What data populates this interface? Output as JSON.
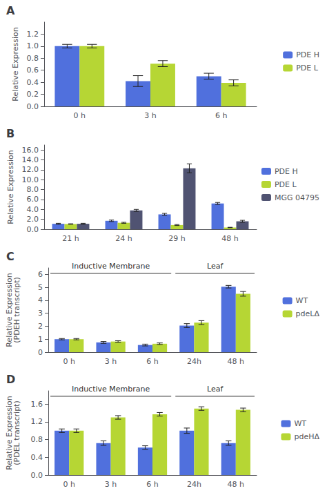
{
  "chart_data": [
    {
      "type": "bar",
      "title": "A",
      "ylabel": "Relative Expression",
      "categories": [
        "0 h",
        "3 h",
        "6 h"
      ],
      "series": [
        {
          "name": "PDE H",
          "values": [
            1.0,
            0.42,
            0.5
          ],
          "errors": [
            0.03,
            0.09,
            0.05
          ]
        },
        {
          "name": "PDE L",
          "values": [
            1.0,
            0.71,
            0.39
          ],
          "errors": [
            0.03,
            0.05,
            0.05
          ]
        }
      ],
      "ylim": [
        0,
        1.4
      ],
      "yticks": [
        {
          "value": 0,
          "label": "0.0"
        },
        0.2,
        0.4,
        0.6,
        0.8,
        {
          "value": 1,
          "label": "1.0"
        },
        1.2
      ],
      "grid": false,
      "legend": "right"
    },
    {
      "type": "bar",
      "title": "B",
      "ylabel": "Relative Expression",
      "categories": [
        "21 h",
        "24 h",
        "29 h",
        "48 h"
      ],
      "series": [
        {
          "name": "PDE H",
          "values": [
            1.1,
            1.7,
            3.0,
            5.2
          ],
          "errors": [
            0.1,
            0.15,
            0.2,
            0.2
          ]
        },
        {
          "name": "PDE L",
          "values": [
            1.05,
            1.3,
            0.85,
            0.35
          ],
          "errors": [
            0.05,
            0.1,
            0.1,
            0.04
          ]
        },
        {
          "name": "MGG 04795",
          "values": [
            1.1,
            3.8,
            12.3,
            1.6
          ],
          "errors": [
            0.1,
            0.2,
            0.9,
            0.2
          ]
        }
      ],
      "ylim": [
        0,
        17
      ],
      "yticks": [
        {
          "value": 0,
          "label": "0.0"
        },
        {
          "value": 2,
          "label": "2.0"
        },
        {
          "value": 4,
          "label": "4.0"
        },
        {
          "value": 6,
          "label": "6.0"
        },
        {
          "value": 8,
          "label": "8.0"
        },
        {
          "value": 10,
          "label": "10.0"
        },
        {
          "value": 12,
          "label": "12.0"
        },
        {
          "value": 14,
          "label": "14.0"
        },
        {
          "value": 16,
          "label": "16.0"
        }
      ],
      "grid": false,
      "legend": "right"
    },
    {
      "type": "bar",
      "title": "C",
      "ylabel": "Relative Expression\n(PDEH transcript)",
      "categories": [
        "0 h",
        "3 h",
        "6 h",
        "24h",
        "48 h"
      ],
      "series": [
        {
          "name": "WT",
          "values": [
            1.0,
            0.75,
            0.55,
            2.05,
            5.05
          ],
          "errors": [
            0.05,
            0.07,
            0.07,
            0.15,
            0.1
          ]
        },
        {
          "name": "pdeLΔ",
          "values": [
            1.0,
            0.82,
            0.65,
            2.28,
            4.5
          ],
          "errors": [
            0.05,
            0.06,
            0.06,
            0.15,
            0.18
          ]
        }
      ],
      "ylim": [
        0,
        6.5
      ],
      "yticks": [
        0,
        1,
        2,
        3,
        4,
        5,
        6
      ],
      "annotations": [
        {
          "text": "Inductive Membrane",
          "categories": [
            "0 h",
            "3 h",
            "6 h"
          ]
        },
        {
          "text": "Leaf",
          "categories": [
            "24h",
            "48 h"
          ]
        }
      ],
      "grid": false,
      "legend": "right"
    },
    {
      "type": "bar",
      "title": "D",
      "ylabel": "Relative Expression\n(PDEL transcript)",
      "categories": [
        "0 h",
        "3 h",
        "6 h",
        "24h",
        "48 h"
      ],
      "series": [
        {
          "name": "WT",
          "values": [
            1.0,
            0.72,
            0.62,
            1.0,
            0.72
          ],
          "errors": [
            0.04,
            0.05,
            0.04,
            0.06,
            0.05
          ]
        },
        {
          "name": "pdeHΔ",
          "values": [
            1.0,
            1.3,
            1.37,
            1.5,
            1.47
          ],
          "errors": [
            0.04,
            0.04,
            0.04,
            0.04,
            0.04
          ]
        }
      ],
      "ylim": [
        0,
        1.9
      ],
      "yticks": [
        {
          "value": 0,
          "label": "0.0"
        },
        0.4,
        0.8,
        1.2,
        1.6
      ],
      "annotations": [
        {
          "text": "Inductive Membrane",
          "categories": [
            "0 h",
            "3 h",
            "6 h"
          ]
        },
        {
          "text": "Leaf",
          "categories": [
            "24h",
            "48 h"
          ]
        }
      ],
      "grid": false,
      "legend": "right"
    }
  ]
}
